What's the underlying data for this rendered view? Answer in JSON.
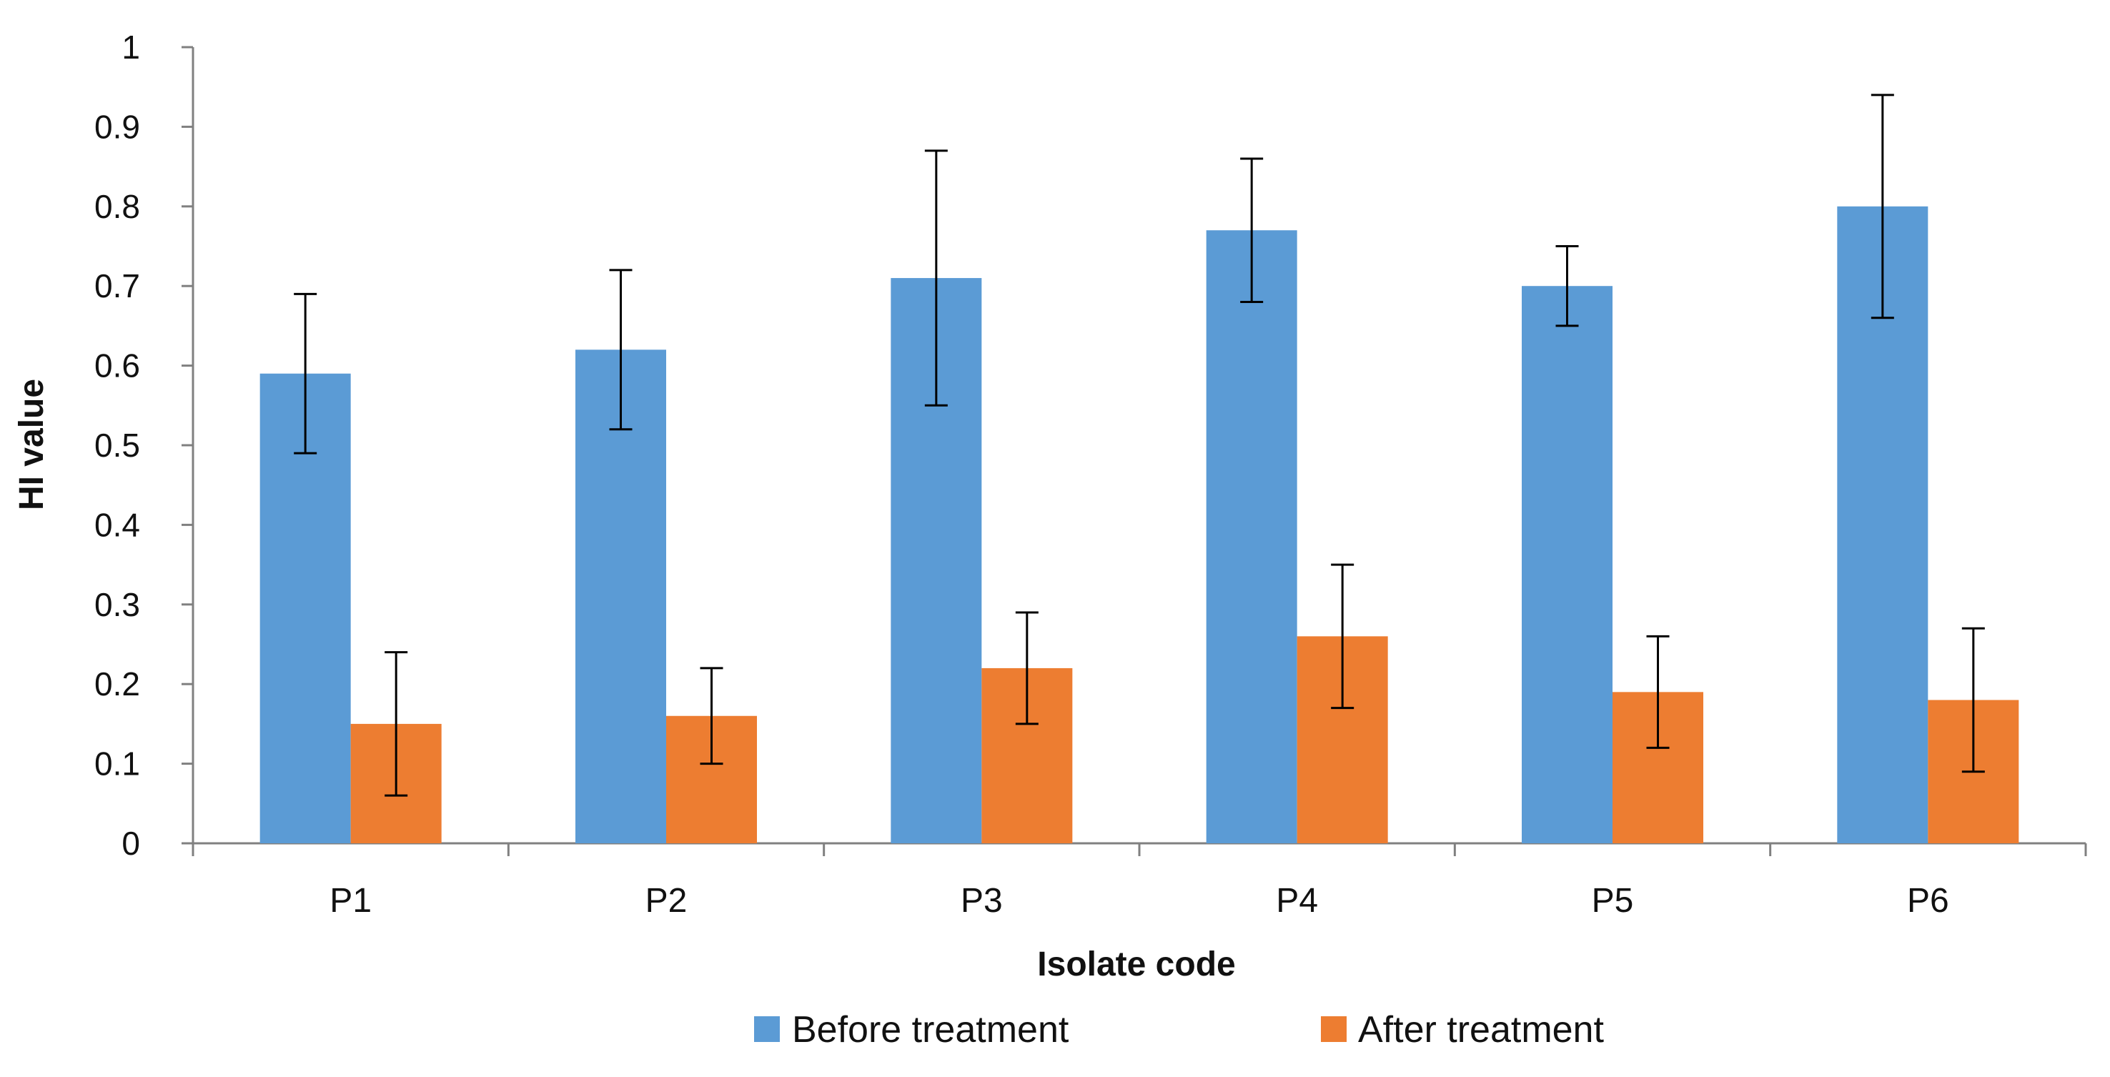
{
  "chart_data": {
    "type": "bar",
    "title": "",
    "xlabel": "Isolate code",
    "ylabel": "HI value",
    "ylim": [
      0,
      1
    ],
    "yticks": [
      "0",
      "0.1",
      "0.2",
      "0.3",
      "0.4",
      "0.5",
      "0.6",
      "0.7",
      "0.8",
      "0.9",
      "1"
    ],
    "grid": false,
    "legend_position": "bottom",
    "categories": [
      "P1",
      "P2",
      "P3",
      "P4",
      "P5",
      "P6"
    ],
    "series": [
      {
        "name": "Before treatment",
        "color": "#5B9BD5",
        "values": [
          0.59,
          0.62,
          0.71,
          0.77,
          0.7,
          0.8
        ],
        "error_low": [
          0.49,
          0.52,
          0.55,
          0.68,
          0.65,
          0.66
        ],
        "error_high": [
          0.69,
          0.72,
          0.87,
          0.86,
          0.75,
          0.94
        ]
      },
      {
        "name": "After treatment",
        "color": "#ED7D31",
        "values": [
          0.15,
          0.16,
          0.22,
          0.26,
          0.19,
          0.18
        ],
        "error_low": [
          0.06,
          0.1,
          0.15,
          0.17,
          0.12,
          0.09
        ],
        "error_high": [
          0.24,
          0.22,
          0.29,
          0.35,
          0.26,
          0.27
        ]
      }
    ]
  }
}
